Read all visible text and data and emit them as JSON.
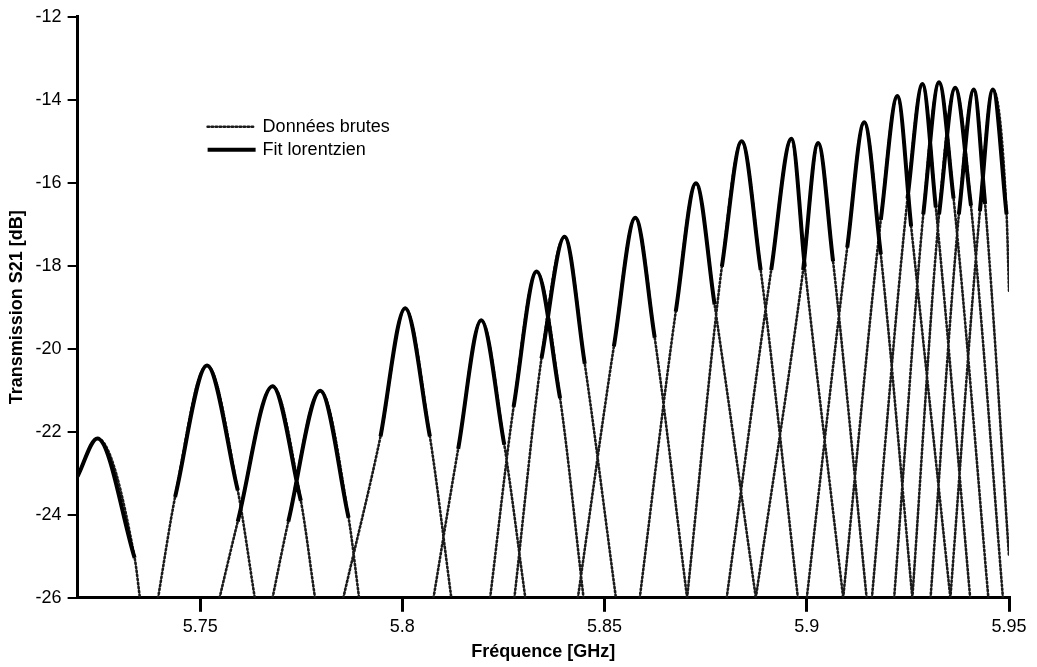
{
  "chart_data": {
    "type": "line",
    "xlabel": "Fréquence [GHz]",
    "ylabel": "Transmission S21 [dB]",
    "xlim": [
      5.7197,
      5.95
    ],
    "ylim": [
      -26,
      -12
    ],
    "xticks": [
      5.75,
      5.8,
      5.85,
      5.9,
      5.95
    ],
    "yticks": [
      -26,
      -24,
      -22,
      -20,
      -18,
      -16,
      -14,
      -12
    ],
    "grid": false,
    "legend": "top left",
    "marker": "none",
    "series": [
      {
        "name": "Données brutes",
        "line_style": "dotted",
        "color": "#1a1a1a",
        "x": [
          5.7197,
          5.7246,
          5.7338,
          5.7351,
          null,
          5.7396,
          5.7438,
          5.7517,
          5.7593,
          5.7635,
          null,
          5.7548,
          5.7593,
          5.7679,
          5.7749,
          5.7784,
          null,
          5.7679,
          5.7718,
          5.7797,
          5.7867,
          5.7893,
          null,
          5.7854,
          5.7946,
          5.8007,
          5.8068,
          5.8121,
          null,
          5.8077,
          5.8138,
          5.8195,
          5.8252,
          5.8304,
          null,
          5.8217,
          5.8275,
          5.8332,
          5.839,
          5.8448,
          null,
          5.8277,
          5.8344,
          5.8401,
          5.8451,
          5.8528,
          null,
          5.8434,
          5.8523,
          5.8576,
          5.8624,
          5.8704,
          null,
          5.8587,
          5.8676,
          5.8726,
          5.8772,
          5.8874,
          null,
          5.8704,
          5.879,
          5.8839,
          5.8886,
          5.8978,
          null,
          5.8802,
          5.8912,
          5.8962,
          5.8995,
          5.909,
          null,
          5.8874,
          5.8991,
          5.9028,
          5.9065,
          5.9148,
          null,
          5.9,
          5.91,
          5.9142,
          5.9183,
          5.9261,
          null,
          5.909,
          5.9183,
          5.9224,
          5.9258,
          5.9355,
          null,
          5.9161,
          5.9249,
          5.9286,
          5.9319,
          5.9404,
          null,
          5.9216,
          5.9288,
          5.9327,
          5.9363,
          5.9449,
          null,
          5.9261,
          5.9327,
          5.9367,
          5.9406,
          5.9485,
          null,
          5.9306,
          5.9376,
          5.9413,
          5.9441,
          5.95,
          null,
          5.9355,
          5.9428,
          5.946,
          5.9494,
          5.95
        ],
        "values": [
          -23.07,
          -22.16,
          -25.04,
          -26,
          null,
          -26,
          -23.57,
          -20.4,
          -23.41,
          -26,
          null,
          -26,
          -24.16,
          -20.9,
          -23.66,
          -26,
          null,
          -26,
          -24.16,
          -21.01,
          -24.07,
          -26,
          null,
          -26,
          -22.11,
          -19.02,
          -22.11,
          -26,
          null,
          -26,
          -22.41,
          -19.31,
          -22.31,
          -26,
          null,
          -26,
          -21.4,
          -18.14,
          -21.19,
          -26,
          null,
          -26,
          -20.23,
          -17.3,
          -20.36,
          -26,
          null,
          -26,
          -19.94,
          -16.84,
          -19.73,
          -26,
          null,
          -26,
          -19.1,
          -16.01,
          -18.93,
          -26,
          null,
          -26,
          -18.02,
          -15,
          -18.1,
          -26,
          null,
          -26,
          -18.1,
          -14.94,
          -18.02,
          -26,
          null,
          -26,
          -18.1,
          -15.04,
          -17.89,
          -26,
          null,
          -26,
          -17.56,
          -14.54,
          -17.72,
          -26,
          null,
          -26,
          -16.89,
          -13.91,
          -17.05,
          -26,
          null,
          -26,
          -16.38,
          -13.62,
          -16.59,
          -26,
          null,
          -26,
          -16.76,
          -13.58,
          -16.38,
          -26,
          null,
          -26,
          -16.76,
          -13.71,
          -16.55,
          -26,
          null,
          -26,
          -16.76,
          -13.75,
          -16.51,
          -25,
          null,
          -26,
          -16.68,
          -13.75,
          -16.76,
          -18.6
        ]
      },
      {
        "name": "Fit lorentzien",
        "line_style": "solid",
        "color": "#000000",
        "x": [
          5.7197,
          5.7246,
          5.7338,
          null,
          5.7438,
          5.7517,
          5.7593,
          null,
          5.7593,
          5.7679,
          5.7749,
          null,
          5.7718,
          5.7797,
          5.7867,
          null,
          5.7946,
          5.8007,
          5.8068,
          null,
          5.8138,
          5.8195,
          5.8252,
          null,
          5.8275,
          5.8332,
          5.839,
          null,
          5.8344,
          5.8401,
          5.8451,
          null,
          5.8523,
          5.8576,
          5.8624,
          null,
          5.8676,
          5.8726,
          5.8772,
          null,
          5.879,
          5.8839,
          5.8886,
          null,
          5.8912,
          5.8962,
          5.8995,
          null,
          5.8991,
          5.9028,
          5.9065,
          null,
          5.91,
          5.9142,
          5.9183,
          null,
          5.9183,
          5.9224,
          5.9258,
          null,
          5.9249,
          5.9286,
          5.9319,
          null,
          5.9288,
          5.9327,
          5.9363,
          null,
          5.9327,
          5.9367,
          5.9406,
          null,
          5.9376,
          5.9413,
          5.9441,
          null,
          5.9428,
          5.946,
          5.9494
        ],
        "values": [
          -23.07,
          -22.16,
          -25.04,
          null,
          -23.57,
          -20.4,
          -23.41,
          null,
          -24.16,
          -20.9,
          -23.66,
          null,
          -24.16,
          -21.01,
          -24.07,
          null,
          -22.11,
          -19.02,
          -22.11,
          null,
          -22.41,
          -19.31,
          -22.31,
          null,
          -21.4,
          -18.14,
          -21.19,
          null,
          -20.23,
          -17.3,
          -20.36,
          null,
          -19.94,
          -16.84,
          -19.73,
          null,
          -19.1,
          -16.01,
          -18.93,
          null,
          -18.02,
          -15,
          -18.1,
          null,
          -18.1,
          -14.94,
          -18.02,
          null,
          -18.1,
          -15.04,
          -17.89,
          null,
          -17.56,
          -14.54,
          -17.72,
          null,
          -16.89,
          -13.91,
          -17.05,
          null,
          -16.38,
          -13.62,
          -16.59,
          null,
          -16.76,
          -13.58,
          -16.38,
          null,
          -16.76,
          -13.71,
          -16.55,
          null,
          -16.76,
          -13.75,
          -16.51,
          null,
          -16.68,
          -13.75,
          -16.76
        ]
      }
    ]
  }
}
